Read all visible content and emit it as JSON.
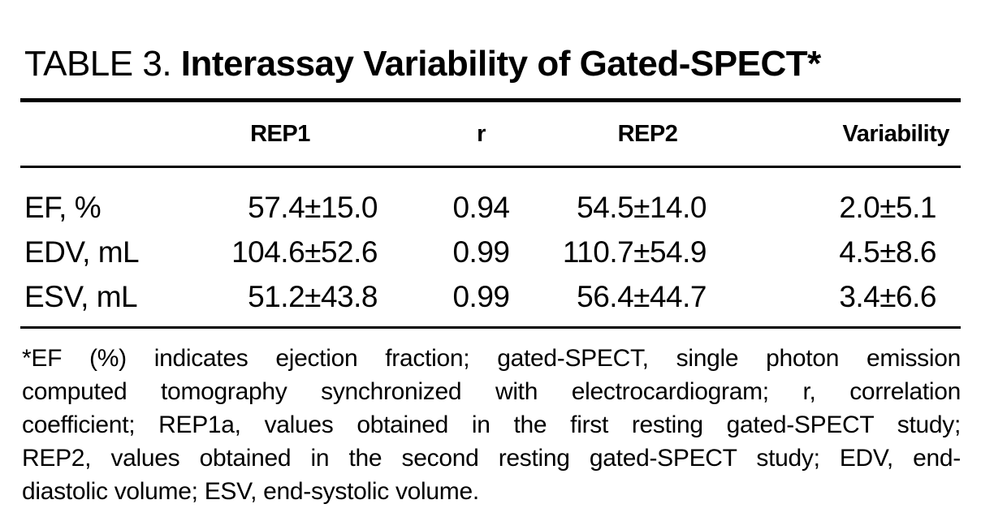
{
  "page": {
    "background_color": "#ffffff",
    "text_color": "#000000",
    "rule_color": "#000000"
  },
  "table": {
    "title": {
      "prefix": "TABLE 3. ",
      "emphasis": "Interassay Variability of Gated-SPECT*"
    },
    "columns": [
      "",
      "REP1",
      "r",
      "REP2",
      "Variability"
    ],
    "rows": [
      [
        "EF, %",
        "57.4±15.0",
        "0.94",
        "54.5±14.0",
        "2.0±5.1"
      ],
      [
        "EDV, mL",
        "104.6±52.6",
        "0.99",
        "110.7±54.9",
        "4.5±8.6"
      ],
      [
        "ESV, mL",
        "51.2±43.8",
        "0.99",
        "56.4±44.7",
        "3.4±6.6"
      ]
    ],
    "footnote": {
      "lines": [
        "*EF (%) indicates ejection fraction; gated-SPECT, single photon emission",
        "computed tomography synchronized with electrocardiogram; r, correlation",
        "coefficient; REP1a, values obtained in the first resting gated-SPECT study;",
        "REP2, values obtained in the second resting gated-SPECT study; EDV, end-",
        "diastolic volume; ESV, end-systolic volume."
      ]
    }
  }
}
